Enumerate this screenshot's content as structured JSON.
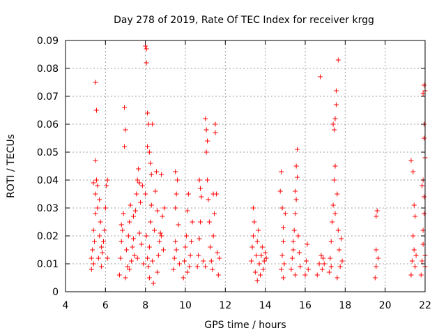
{
  "chart_data": {
    "type": "scatter",
    "title": "Day 278 of 2019, Rate Of TEC Index for receiver krgg",
    "xlabel": "GPS time / hours",
    "ylabel": "ROTI / TECUs",
    "xlim": [
      4,
      22
    ],
    "ylim": [
      0,
      0.09
    ],
    "x_ticks": [
      4,
      6,
      8,
      10,
      12,
      14,
      16,
      18,
      20,
      22
    ],
    "y_ticks": [
      0,
      0.01,
      0.02,
      0.03,
      0.04,
      0.05,
      0.06,
      0.07,
      0.08,
      0.09
    ],
    "x_tick_labels": [
      "4",
      "6",
      "8",
      "10",
      "12",
      "14",
      "16",
      "18",
      "20",
      "22"
    ],
    "y_tick_labels": [
      "0",
      "0.01",
      "0.02",
      "0.03",
      "0.04",
      "0.05",
      "0.06",
      "0.07",
      "0.08",
      "0.09"
    ],
    "grid": true,
    "marker": "+",
    "marker_color": "#ff0000",
    "points": [
      [
        5.3,
        0.008
      ],
      [
        5.3,
        0.012
      ],
      [
        5.35,
        0.015
      ],
      [
        5.4,
        0.01
      ],
      [
        5.4,
        0.022
      ],
      [
        5.45,
        0.018
      ],
      [
        5.5,
        0.028
      ],
      [
        5.5,
        0.035
      ],
      [
        5.55,
        0.04
      ],
      [
        5.5,
        0.047
      ],
      [
        5.55,
        0.065
      ],
      [
        5.5,
        0.075
      ],
      [
        5.6,
        0.03
      ],
      [
        5.65,
        0.012
      ],
      [
        5.7,
        0.02
      ],
      [
        5.75,
        0.025
      ],
      [
        5.8,
        0.009
      ],
      [
        5.85,
        0.014
      ],
      [
        5.9,
        0.018
      ],
      [
        5.95,
        0.022
      ],
      [
        6.0,
        0.03
      ],
      [
        6.05,
        0.038
      ],
      [
        6.1,
        0.012
      ],
      [
        6.1,
        0.04
      ],
      [
        5.6,
        0.038
      ],
      [
        5.7,
        0.033
      ],
      [
        5.8,
        0.016
      ],
      [
        5.4,
        0.039
      ],
      [
        6.7,
        0.006
      ],
      [
        6.75,
        0.012
      ],
      [
        6.8,
        0.018
      ],
      [
        6.85,
        0.022
      ],
      [
        6.9,
        0.028
      ],
      [
        6.95,
        0.052
      ],
      [
        7.0,
        0.058
      ],
      [
        6.95,
        0.066
      ],
      [
        7.05,
        0.015
      ],
      [
        7.1,
        0.009
      ],
      [
        7.15,
        0.02
      ],
      [
        7.2,
        0.025
      ],
      [
        7.25,
        0.031
      ],
      [
        7.3,
        0.011
      ],
      [
        7.35,
        0.016
      ],
      [
        7.4,
        0.027
      ],
      [
        7.45,
        0.013
      ],
      [
        7.5,
        0.029
      ],
      [
        7.55,
        0.035
      ],
      [
        7.6,
        0.04
      ],
      [
        7.65,
        0.044
      ],
      [
        7.7,
        0.021
      ],
      [
        7.75,
        0.032
      ],
      [
        7.8,
        0.017
      ],
      [
        7.85,
        0.038
      ],
      [
        7.9,
        0.01
      ],
      [
        6.8,
        0.024
      ],
      [
        7.0,
        0.005
      ],
      [
        7.2,
        0.008
      ],
      [
        7.4,
        0.019
      ],
      [
        7.6,
        0.012
      ],
      [
        7.7,
        0.039
      ],
      [
        8.0,
        0.088
      ],
      [
        8.05,
        0.087
      ],
      [
        8.05,
        0.082
      ],
      [
        8.1,
        0.064
      ],
      [
        8.15,
        0.06
      ],
      [
        8.2,
        0.05
      ],
      [
        8.25,
        0.046
      ],
      [
        8.3,
        0.042
      ],
      [
        8.35,
        0.06
      ],
      [
        8.1,
        0.052
      ],
      [
        8.0,
        0.035
      ],
      [
        8.05,
        0.02
      ],
      [
        8.1,
        0.012
      ],
      [
        8.15,
        0.009
      ],
      [
        8.2,
        0.016
      ],
      [
        8.25,
        0.025
      ],
      [
        8.3,
        0.031
      ],
      [
        8.35,
        0.011
      ],
      [
        8.4,
        0.003
      ],
      [
        8.45,
        0.022
      ],
      [
        8.5,
        0.036
      ],
      [
        8.55,
        0.043
      ],
      [
        8.6,
        0.029
      ],
      [
        8.65,
        0.013
      ],
      [
        8.7,
        0.018
      ],
      [
        8.75,
        0.021
      ],
      [
        8.8,
        0.042
      ],
      [
        8.85,
        0.027
      ],
      [
        8.9,
        0.015
      ],
      [
        8.95,
        0.03
      ],
      [
        8.2,
        0.005
      ],
      [
        8.6,
        0.007
      ],
      [
        8.8,
        0.02
      ],
      [
        9.4,
        0.008
      ],
      [
        9.45,
        0.012
      ],
      [
        9.5,
        0.018
      ],
      [
        9.5,
        0.03
      ],
      [
        9.55,
        0.035
      ],
      [
        9.6,
        0.04
      ],
      [
        9.5,
        0.043
      ],
      [
        9.65,
        0.024
      ],
      [
        9.7,
        0.01
      ],
      [
        9.55,
        0.015
      ],
      [
        9.9,
        0.005
      ],
      [
        9.95,
        0.011
      ],
      [
        10.0,
        0.016
      ],
      [
        10.05,
        0.02
      ],
      [
        10.1,
        0.029
      ],
      [
        10.15,
        0.035
      ],
      [
        10.2,
        0.009
      ],
      [
        10.25,
        0.013
      ],
      [
        10.3,
        0.018
      ],
      [
        10.35,
        0.025
      ],
      [
        10.1,
        0.007
      ],
      [
        10.6,
        0.009
      ],
      [
        10.65,
        0.013
      ],
      [
        10.7,
        0.019
      ],
      [
        10.75,
        0.025
      ],
      [
        10.8,
        0.034
      ],
      [
        10.7,
        0.04
      ],
      [
        10.75,
        0.037
      ],
      [
        10.9,
        0.011
      ],
      [
        11.0,
        0.062
      ],
      [
        11.05,
        0.058
      ],
      [
        11.1,
        0.054
      ],
      [
        11.05,
        0.05
      ],
      [
        11.1,
        0.04
      ],
      [
        11.15,
        0.033
      ],
      [
        11.2,
        0.025
      ],
      [
        11.25,
        0.016
      ],
      [
        11.3,
        0.011
      ],
      [
        11.35,
        0.008
      ],
      [
        11.4,
        0.02
      ],
      [
        11.45,
        0.028
      ],
      [
        11.5,
        0.06
      ],
      [
        11.5,
        0.057
      ],
      [
        11.55,
        0.035
      ],
      [
        11.6,
        0.014
      ],
      [
        11.65,
        0.006
      ],
      [
        11.7,
        0.012
      ],
      [
        11.4,
        0.035
      ],
      [
        11.0,
        0.009
      ],
      [
        13.3,
        0.011
      ],
      [
        13.35,
        0.016
      ],
      [
        13.4,
        0.02
      ],
      [
        13.45,
        0.025
      ],
      [
        13.4,
        0.03
      ],
      [
        13.5,
        0.007
      ],
      [
        13.55,
        0.013
      ],
      [
        13.6,
        0.018
      ],
      [
        13.65,
        0.022
      ],
      [
        13.7,
        0.01
      ],
      [
        13.75,
        0.006
      ],
      [
        13.8,
        0.013
      ],
      [
        13.85,
        0.016
      ],
      [
        13.9,
        0.008
      ],
      [
        13.95,
        0.011
      ],
      [
        14.0,
        0.014
      ],
      [
        14.05,
        0.012
      ],
      [
        13.6,
        0.004
      ],
      [
        14.8,
        0.008
      ],
      [
        14.85,
        0.013
      ],
      [
        14.9,
        0.018
      ],
      [
        14.75,
        0.036
      ],
      [
        14.8,
        0.043
      ],
      [
        14.85,
        0.03
      ],
      [
        14.9,
        0.023
      ],
      [
        14.95,
        0.01
      ],
      [
        15.0,
        0.028
      ],
      [
        14.9,
        0.005
      ],
      [
        15.3,
        0.008
      ],
      [
        15.35,
        0.012
      ],
      [
        15.4,
        0.018
      ],
      [
        15.45,
        0.022
      ],
      [
        15.5,
        0.028
      ],
      [
        15.55,
        0.033
      ],
      [
        15.6,
        0.041
      ],
      [
        15.55,
        0.045
      ],
      [
        15.6,
        0.051
      ],
      [
        15.65,
        0.02
      ],
      [
        15.7,
        0.014
      ],
      [
        15.75,
        0.009
      ],
      [
        15.5,
        0.006
      ],
      [
        15.4,
        0.015
      ],
      [
        15.5,
        0.036
      ],
      [
        16.0,
        0.006
      ],
      [
        16.05,
        0.011
      ],
      [
        16.1,
        0.017
      ],
      [
        16.15,
        0.008
      ],
      [
        16.6,
        0.006
      ],
      [
        16.7,
        0.01
      ],
      [
        16.75,
        0.077
      ],
      [
        16.8,
        0.013
      ],
      [
        16.85,
        0.008
      ],
      [
        16.9,
        0.012
      ],
      [
        16.95,
        0.01
      ],
      [
        17.2,
        0.007
      ],
      [
        17.25,
        0.012
      ],
      [
        17.3,
        0.018
      ],
      [
        17.35,
        0.025
      ],
      [
        17.4,
        0.031
      ],
      [
        17.45,
        0.04
      ],
      [
        17.5,
        0.045
      ],
      [
        17.4,
        0.06
      ],
      [
        17.45,
        0.058
      ],
      [
        17.5,
        0.062
      ],
      [
        17.55,
        0.072
      ],
      [
        17.6,
        0.035
      ],
      [
        17.65,
        0.022
      ],
      [
        17.7,
        0.015
      ],
      [
        17.75,
        0.009
      ],
      [
        17.8,
        0.019
      ],
      [
        17.65,
        0.083
      ],
      [
        17.55,
        0.067
      ],
      [
        17.5,
        0.028
      ],
      [
        17.3,
        0.009
      ],
      [
        17.6,
        0.005
      ],
      [
        17.85,
        0.011
      ],
      [
        19.5,
        0.005
      ],
      [
        19.55,
        0.009
      ],
      [
        19.55,
        0.015
      ],
      [
        19.6,
        0.029
      ],
      [
        19.55,
        0.027
      ],
      [
        19.65,
        0.012
      ],
      [
        21.3,
        0.006
      ],
      [
        21.35,
        0.011
      ],
      [
        21.3,
        0.047
      ],
      [
        21.4,
        0.043
      ],
      [
        21.4,
        0.02
      ],
      [
        21.45,
        0.015
      ],
      [
        21.5,
        0.027
      ],
      [
        21.45,
        0.031
      ],
      [
        21.5,
        0.009
      ],
      [
        21.55,
        0.013
      ],
      [
        21.8,
        0.006
      ],
      [
        21.85,
        0.011
      ],
      [
        21.9,
        0.017
      ],
      [
        21.9,
        0.022
      ],
      [
        21.95,
        0.028
      ],
      [
        21.95,
        0.034
      ],
      [
        21.9,
        0.04
      ],
      [
        21.95,
        0.055
      ],
      [
        21.95,
        0.06
      ],
      [
        21.9,
        0.071
      ],
      [
        21.95,
        0.074
      ],
      [
        22.0,
        0.072
      ],
      [
        22.0,
        0.048
      ],
      [
        22.0,
        0.013
      ],
      [
        22.0,
        0.009
      ],
      [
        21.85,
        0.038
      ]
    ]
  }
}
